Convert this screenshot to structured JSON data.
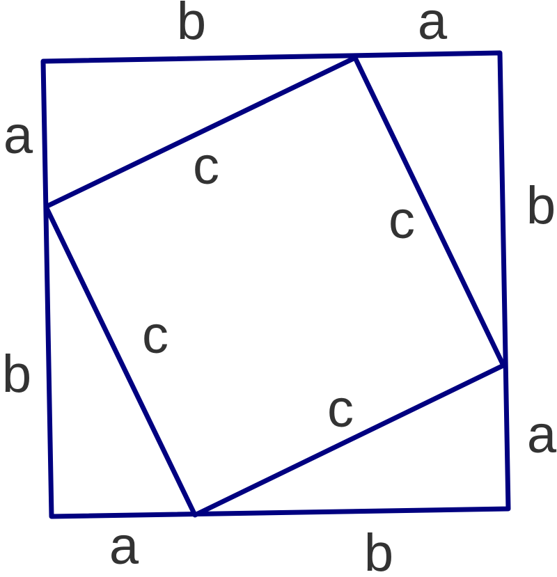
{
  "colors": {
    "stroke": "#000080",
    "label": "#333333",
    "background": "#ffffff"
  },
  "labels": {
    "top_left": "b",
    "top_right": "a",
    "left_upper": "a",
    "left_lower": "b",
    "right_upper": "b",
    "right_lower": "a",
    "bottom_left": "a",
    "bottom_right": "b",
    "inner_top": "c",
    "inner_right": "c",
    "inner_left": "c",
    "inner_bottom": "c"
  }
}
